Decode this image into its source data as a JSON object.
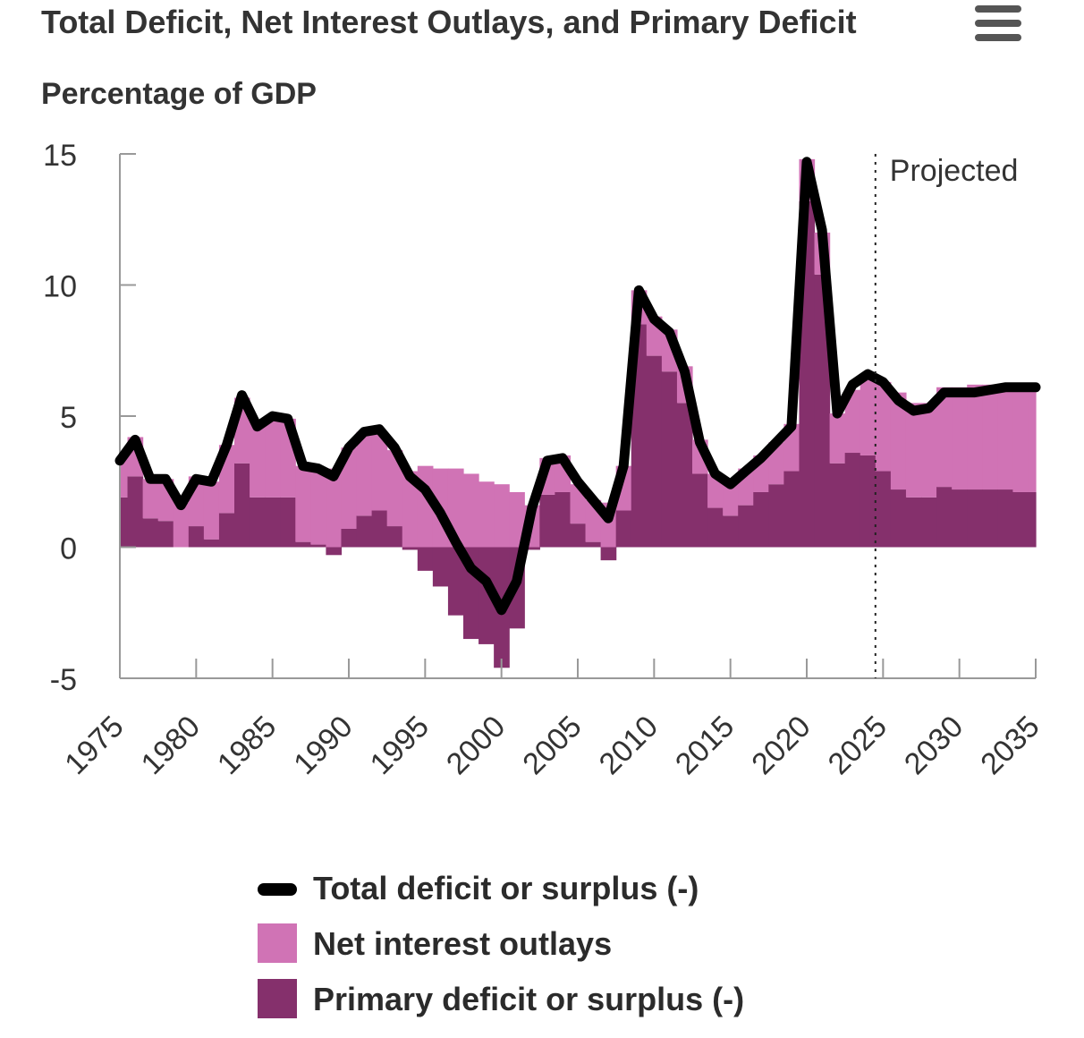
{
  "header": {
    "title": "Total Deficit, Net Interest Outlays, and Primary Deficit",
    "subtitle": "Percentage of GDP",
    "menu_icon": "hamburger-menu-icon"
  },
  "legend": [
    {
      "label": "Total deficit or surplus (-)",
      "kind": "line",
      "color": "#000000"
    },
    {
      "label": "Net interest outlays",
      "kind": "box",
      "color": "#d073b5"
    },
    {
      "label": "Primary deficit or surplus (-)",
      "kind": "box",
      "color": "#85306c"
    }
  ],
  "chart_data": {
    "type": "area",
    "x": [
      1975,
      1976,
      1977,
      1978,
      1979,
      1980,
      1981,
      1982,
      1983,
      1984,
      1985,
      1986,
      1987,
      1988,
      1989,
      1990,
      1991,
      1992,
      1993,
      1994,
      1995,
      1996,
      1997,
      1998,
      1999,
      2000,
      2001,
      2002,
      2003,
      2004,
      2005,
      2006,
      2007,
      2008,
      2009,
      2010,
      2011,
      2012,
      2013,
      2014,
      2015,
      2016,
      2017,
      2018,
      2019,
      2020,
      2021,
      2022,
      2023,
      2024,
      2025,
      2026,
      2027,
      2028,
      2029,
      2030,
      2031,
      2032,
      2033,
      2034,
      2035
    ],
    "series": [
      {
        "name": "Net interest outlays",
        "color": "#d073b5",
        "kind": "bar",
        "values": [
          1.5,
          1.5,
          1.5,
          1.6,
          1.7,
          1.9,
          2.2,
          2.6,
          2.5,
          2.9,
          3.0,
          3.0,
          2.9,
          2.9,
          3.0,
          3.1,
          3.2,
          3.0,
          2.9,
          2.9,
          3.1,
          3.0,
          3.0,
          2.8,
          2.5,
          2.4,
          2.1,
          1.6,
          1.4,
          1.4,
          1.5,
          1.6,
          1.7,
          1.7,
          1.3,
          1.5,
          1.6,
          1.4,
          1.3,
          1.3,
          1.3,
          1.4,
          1.4,
          1.6,
          1.8,
          1.6,
          1.6,
          1.9,
          2.4,
          3.1,
          3.4,
          3.7,
          3.6,
          3.6,
          3.8,
          3.9,
          4.0,
          4.0,
          4.0,
          4.0,
          4.1
        ]
      },
      {
        "name": "Primary deficit or surplus (-)",
        "color": "#85306c",
        "kind": "bar",
        "values": [
          1.9,
          2.7,
          1.1,
          1.0,
          0.0,
          0.8,
          0.3,
          1.3,
          3.2,
          1.9,
          1.9,
          1.9,
          0.2,
          0.1,
          -0.3,
          0.7,
          1.2,
          1.4,
          0.8,
          -0.1,
          -0.9,
          -1.5,
          -2.6,
          -3.5,
          -3.7,
          -4.6,
          -3.1,
          -0.1,
          2.0,
          2.1,
          0.9,
          0.2,
          -0.5,
          1.4,
          8.5,
          7.3,
          6.7,
          5.5,
          2.8,
          1.5,
          1.2,
          1.6,
          2.1,
          2.4,
          2.9,
          13.2,
          10.4,
          3.2,
          3.6,
          3.5,
          2.9,
          2.2,
          1.9,
          1.9,
          2.3,
          2.2,
          2.2,
          2.2,
          2.2,
          2.1,
          2.1
        ]
      },
      {
        "name": "Total deficit or surplus (-)",
        "color": "#000000",
        "kind": "line",
        "values": [
          3.3,
          4.1,
          2.6,
          2.6,
          1.6,
          2.6,
          2.5,
          3.9,
          5.8,
          4.6,
          5.0,
          4.9,
          3.1,
          3.0,
          2.7,
          3.8,
          4.4,
          4.5,
          3.8,
          2.7,
          2.2,
          1.3,
          0.2,
          -0.8,
          -1.3,
          -2.4,
          -1.3,
          1.5,
          3.3,
          3.4,
          2.5,
          1.8,
          1.1,
          3.1,
          9.8,
          8.7,
          8.2,
          6.7,
          4.0,
          2.8,
          2.4,
          2.9,
          3.4,
          4.0,
          4.6,
          14.7,
          12.1,
          5.1,
          6.2,
          6.6,
          6.3,
          5.6,
          5.2,
          5.3,
          5.9,
          5.9,
          5.9,
          6.0,
          6.1,
          6.1,
          6.1
        ]
      }
    ],
    "xlabel": "",
    "ylabel": "Percentage of GDP",
    "ylim": [
      -5,
      15
    ],
    "yticks": [
      -5,
      0,
      5,
      10,
      15
    ],
    "xticks": [
      1975,
      1980,
      1985,
      1990,
      1995,
      2000,
      2005,
      2010,
      2015,
      2020,
      2025,
      2030,
      2035
    ],
    "annotations": [
      {
        "text": "Projected",
        "x": 2024.5
      }
    ],
    "legend_position": "bottom",
    "grid": false
  }
}
